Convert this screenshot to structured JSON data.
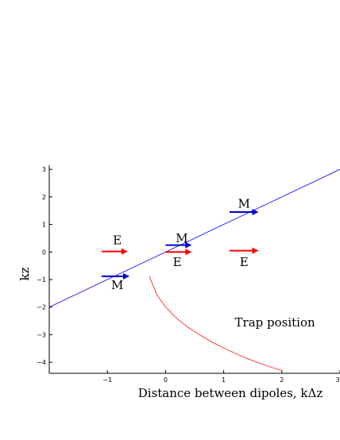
{
  "chart_data": {
    "type": "line",
    "xlabel": "Distance between  dipoles, kΔz",
    "ylabel": "kz",
    "xlim": [
      -2,
      3
    ],
    "ylim": [
      -4.4,
      3.15
    ],
    "x_ticks": [
      -1,
      0,
      1,
      2,
      3
    ],
    "y_ticks": [
      3,
      2,
      1,
      0,
      -1,
      -2,
      -3,
      -4
    ],
    "x_tick_labels": [
      "−1",
      "0",
      "1",
      "2",
      "3"
    ],
    "y_tick_labels": [
      "3",
      "2",
      "1",
      "0",
      "−1",
      "−2",
      "−3",
      "−4"
    ],
    "grid": false,
    "series": [
      {
        "color": "#1a1aff",
        "x": [
          -2,
          3
        ],
        "y": [
          -2.0,
          3.0
        ]
      },
      {
        "color": "#ff2a2a",
        "x": [
          -0.28,
          -0.15,
          0.0,
          0.2,
          0.4,
          0.6,
          0.8,
          1.0,
          1.2,
          1.4,
          1.6,
          1.8,
          2.0
        ],
        "y": [
          -0.88,
          -1.55,
          -2.0,
          -2.42,
          -2.75,
          -3.02,
          -3.27,
          -3.48,
          -3.68,
          -3.86,
          -4.02,
          -4.17,
          -4.3
        ]
      }
    ],
    "arrows": [
      {
        "x0": -1.1,
        "x1": -0.65,
        "y": 0.02,
        "color": "#ff0000",
        "label": "E",
        "label_x": -0.83,
        "label_y": 0.43
      },
      {
        "x0": -1.1,
        "x1": -0.62,
        "y": -0.88,
        "color": "#0000cc",
        "label": "M",
        "label_x": -0.83,
        "label_y": -1.2
      },
      {
        "x0": 0.0,
        "x1": 0.45,
        "y": 0.25,
        "color": "#0000cc",
        "label": "M",
        "label_x": 0.28,
        "label_y": 0.5
      },
      {
        "x0": 0.0,
        "x1": 0.45,
        "y": 0.0,
        "color": "#ff0000",
        "label": "E",
        "label_x": 0.2,
        "label_y": -0.37
      },
      {
        "x0": 1.1,
        "x1": 1.6,
        "y": 1.45,
        "color": "#0000cc",
        "label": "M",
        "label_x": 1.35,
        "label_y": 1.75
      },
      {
        "x0": 1.1,
        "x1": 1.6,
        "y": 0.05,
        "color": "#ff0000",
        "label": "E",
        "label_x": 1.35,
        "label_y": -0.37
      }
    ],
    "annotations": [
      {
        "text": "Trap position",
        "x": 1.6,
        "y": -2.55
      }
    ]
  }
}
